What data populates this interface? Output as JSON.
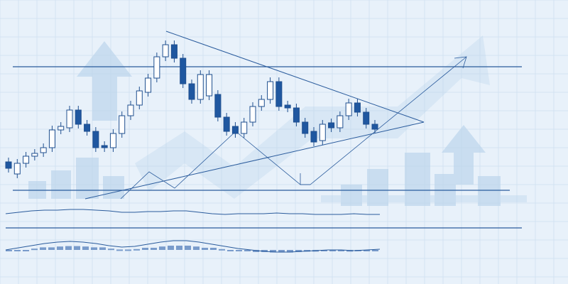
{
  "chart_data": {
    "type": "candlestick",
    "title": "",
    "grid": true,
    "colors": {
      "up_fill": "#ffffff",
      "down_fill": "#1f57a0",
      "outline": "#1f4f8f",
      "line": "#2a5b9c",
      "background": "#e8f1fa",
      "ghost": "#b9d3ec"
    },
    "candles": [
      {
        "o": 42,
        "c": 33
      },
      {
        "o": 25,
        "c": 40
      },
      {
        "o": 40,
        "c": 50
      },
      {
        "o": 50,
        "c": 54
      },
      {
        "o": 55,
        "c": 62
      },
      {
        "o": 62,
        "c": 87
      },
      {
        "o": 87,
        "c": 92
      },
      {
        "o": 90,
        "c": 115
      },
      {
        "o": 115,
        "c": 95
      },
      {
        "o": 95,
        "c": 85
      },
      {
        "o": 85,
        "c": 62
      },
      {
        "o": 65,
        "c": 62
      },
      {
        "o": 62,
        "c": 82
      },
      {
        "o": 82,
        "c": 107
      },
      {
        "o": 107,
        "c": 122
      },
      {
        "o": 122,
        "c": 142
      },
      {
        "o": 140,
        "c": 160
      },
      {
        "o": 160,
        "c": 190
      },
      {
        "o": 190,
        "c": 207
      },
      {
        "o": 207,
        "c": 188
      },
      {
        "o": 188,
        "c": 152
      },
      {
        "o": 152,
        "c": 130
      },
      {
        "o": 130,
        "c": 165
      },
      {
        "o": 135,
        "c": 165
      },
      {
        "o": 137,
        "c": 105
      },
      {
        "o": 105,
        "c": 85
      },
      {
        "o": 92,
        "c": 82
      },
      {
        "o": 82,
        "c": 98
      },
      {
        "o": 98,
        "c": 120
      },
      {
        "o": 120,
        "c": 130
      },
      {
        "o": 130,
        "c": 155
      },
      {
        "o": 155,
        "c": 120
      },
      {
        "o": 122,
        "c": 118
      },
      {
        "o": 118,
        "c": 98
      },
      {
        "o": 98,
        "c": 82
      },
      {
        "o": 85,
        "c": 70
      },
      {
        "o": 72,
        "c": 95
      },
      {
        "o": 97,
        "c": 90
      },
      {
        "o": 90,
        "c": 107
      },
      {
        "o": 107,
        "c": 125
      },
      {
        "o": 125,
        "c": 112
      },
      {
        "o": 112,
        "c": 95
      },
      {
        "o": 95,
        "c": 88
      }
    ],
    "oscillator_1": [
      4,
      6,
      8,
      9,
      9,
      10,
      10,
      9,
      8,
      6,
      6,
      7,
      7,
      8,
      8,
      6,
      4,
      3,
      4,
      4,
      4,
      5,
      4,
      4,
      3,
      3,
      3,
      4,
      3,
      3
    ],
    "oscillator_2": [
      0,
      3,
      6,
      9,
      11,
      12,
      11,
      9,
      6,
      4,
      5,
      8,
      11,
      13,
      13,
      11,
      8,
      5,
      2,
      0,
      -2,
      -3,
      -3,
      -2,
      -1,
      0,
      0,
      -1,
      0,
      1
    ]
  }
}
